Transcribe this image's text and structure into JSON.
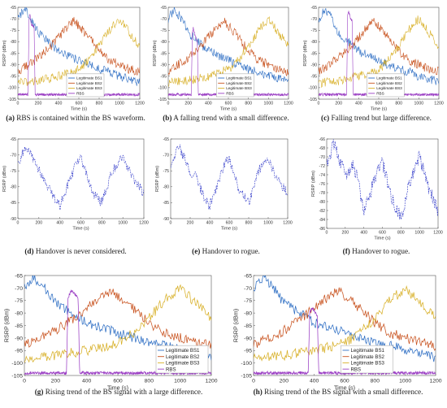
{
  "chart_data": [
    {
      "type": "line",
      "panel": "a",
      "caption_tag": "(a)",
      "caption": "RBS is contained within the BS waveform.",
      "xlabel": "Time (s)",
      "ylabel": "RSRP (dBm)",
      "xlim": [
        0,
        1200
      ],
      "ylim": [
        -105,
        -65
      ],
      "xticks": [
        "0",
        "200",
        "400",
        "600",
        "800",
        "1000",
        "1200"
      ],
      "yticks": [
        "-65",
        "-70",
        "-75",
        "-80",
        "-85",
        "-90",
        "-95",
        "-100",
        "-105"
      ],
      "legend": "bottom-left",
      "series": [
        {
          "name": "Legitimate BS1",
          "color": "#2f6fc4",
          "x": [
            0,
            60,
            120,
            200,
            300,
            400,
            500,
            600,
            700,
            800,
            900,
            1000,
            1100,
            1200
          ],
          "y": [
            -70,
            -66,
            -69,
            -76,
            -80,
            -84,
            -86,
            -88,
            -90,
            -92,
            -93,
            -95,
            -96,
            -98
          ]
        },
        {
          "name": "Legitimate BS2",
          "color": "#c8521e",
          "x": [
            0,
            100,
            200,
            300,
            400,
            500,
            550,
            600,
            700,
            800,
            900,
            1000,
            1100,
            1200
          ],
          "y": [
            -93,
            -90,
            -87,
            -83,
            -78,
            -73,
            -71,
            -73,
            -78,
            -84,
            -88,
            -90,
            -92,
            -93
          ]
        },
        {
          "name": "Legitimate BS3",
          "color": "#d8b028",
          "x": [
            0,
            200,
            400,
            600,
            700,
            800,
            900,
            1000,
            1100,
            1200
          ],
          "y": [
            -98,
            -97,
            -95,
            -92,
            -88,
            -82,
            -75,
            -70,
            -76,
            -82
          ]
        },
        {
          "name": "RBS",
          "color": "#9b3fc4",
          "x": [
            0,
            100,
            110,
            120,
            130,
            160,
            170,
            180,
            200,
            1200
          ],
          "y": [
            -103,
            -103,
            -70,
            -68,
            -72,
            -74,
            -103,
            -103,
            -103,
            -103
          ]
        }
      ]
    },
    {
      "type": "line",
      "panel": "b",
      "caption_tag": "(b)",
      "caption": "A falling trend with a small difference.",
      "xlabel": "Time (s)",
      "ylabel": "RSRP (dBm)",
      "xlim": [
        0,
        1200
      ],
      "ylim": [
        -105,
        -65
      ],
      "xticks": [
        "0",
        "200",
        "400",
        "600",
        "800",
        "1000",
        "1200"
      ],
      "yticks": [
        "-65",
        "-70",
        "-75",
        "-80",
        "-85",
        "-90",
        "-95",
        "-100",
        "-105"
      ],
      "legend": "bottom-left",
      "series": [
        {
          "name": "Legitimate BS1",
          "color": "#2f6fc4",
          "x": [
            0,
            60,
            120,
            200,
            300,
            400,
            500,
            600,
            700,
            800,
            900,
            1000,
            1100,
            1200
          ],
          "y": [
            -70,
            -66,
            -69,
            -76,
            -80,
            -84,
            -86,
            -88,
            -90,
            -92,
            -93,
            -95,
            -96,
            -98
          ]
        },
        {
          "name": "Legitimate BS2",
          "color": "#c8521e",
          "x": [
            0,
            100,
            200,
            300,
            400,
            500,
            550,
            600,
            700,
            800,
            900,
            1000,
            1100,
            1200
          ],
          "y": [
            -93,
            -90,
            -87,
            -83,
            -78,
            -73,
            -71,
            -73,
            -78,
            -84,
            -88,
            -90,
            -92,
            -93
          ]
        },
        {
          "name": "Legitimate BS3",
          "color": "#d8b028",
          "x": [
            0,
            200,
            400,
            600,
            700,
            800,
            900,
            1000,
            1100,
            1200
          ],
          "y": [
            -98,
            -97,
            -95,
            -92,
            -88,
            -82,
            -75,
            -70,
            -76,
            -82
          ]
        },
        {
          "name": "RBS",
          "color": "#9b3fc4",
          "x": [
            0,
            230,
            240,
            250,
            270,
            290,
            300,
            310,
            1200
          ],
          "y": [
            -103,
            -103,
            -76,
            -74,
            -78,
            -80,
            -103,
            -103,
            -103
          ]
        }
      ]
    },
    {
      "type": "line",
      "panel": "c",
      "caption_tag": "(c)",
      "caption": "Falling trend but large difference.",
      "xlabel": "Time (s)",
      "ylabel": "RSRP (dBm)",
      "xlim": [
        0,
        1200
      ],
      "ylim": [
        -105,
        -65
      ],
      "xticks": [
        "0",
        "200",
        "400",
        "600",
        "800",
        "1000",
        "1200"
      ],
      "yticks": [
        "-65",
        "-70",
        "-75",
        "-80",
        "-85",
        "-90",
        "-95",
        "-100",
        "-105"
      ],
      "legend": "bottom-left",
      "series": [
        {
          "name": "Legitimate BS1",
          "color": "#2f6fc4",
          "x": [
            0,
            60,
            120,
            200,
            300,
            400,
            500,
            600,
            700,
            800,
            900,
            1000,
            1100,
            1200
          ],
          "y": [
            -70,
            -66,
            -69,
            -76,
            -80,
            -84,
            -86,
            -88,
            -90,
            -92,
            -93,
            -95,
            -96,
            -98
          ]
        },
        {
          "name": "Legitimate BS2",
          "color": "#c8521e",
          "x": [
            0,
            100,
            200,
            300,
            400,
            500,
            550,
            600,
            700,
            800,
            900,
            1000,
            1100,
            1200
          ],
          "y": [
            -93,
            -90,
            -87,
            -83,
            -78,
            -73,
            -71,
            -73,
            -78,
            -84,
            -88,
            -90,
            -92,
            -93
          ]
        },
        {
          "name": "Legitimate BS3",
          "color": "#d8b028",
          "x": [
            0,
            200,
            400,
            600,
            700,
            800,
            900,
            1000,
            1100,
            1200
          ],
          "y": [
            -98,
            -97,
            -95,
            -92,
            -88,
            -82,
            -75,
            -70,
            -76,
            -82
          ]
        },
        {
          "name": "RBS",
          "color": "#9b3fc4",
          "x": [
            0,
            280,
            290,
            300,
            320,
            335,
            345,
            355,
            1200
          ],
          "y": [
            -103,
            -103,
            -68,
            -67,
            -70,
            -71,
            -103,
            -103,
            -103
          ]
        }
      ]
    },
    {
      "type": "line",
      "panel": "d",
      "caption_tag": "(d)",
      "caption": "Handover is never considered.",
      "xlabel": "Time (s)",
      "ylabel": "RSRP (dBm)",
      "xlim": [
        0,
        1200
      ],
      "ylim": [
        -90,
        -65
      ],
      "xticks": [
        "0",
        "200",
        "400",
        "600",
        "800",
        "1000",
        "1200"
      ],
      "yticks": [
        "-65",
        "-70",
        "-75",
        "-80",
        "-85",
        "-90"
      ],
      "series": [
        {
          "color": "#2f38c8",
          "x": [
            0,
            80,
            200,
            350,
            400,
            550,
            600,
            700,
            800,
            900,
            1000,
            1100,
            1200
          ],
          "y": [
            -73,
            -67,
            -75,
            -84,
            -86,
            -73,
            -71,
            -81,
            -85,
            -75,
            -71,
            -78,
            -82
          ]
        }
      ]
    },
    {
      "type": "line",
      "panel": "e",
      "caption_tag": "(e)",
      "caption": "Handover to rogue.",
      "xlabel": "Time (s)",
      "ylabel": "RSRP (dBm)",
      "xlim": [
        0,
        1200
      ],
      "ylim": [
        -90,
        -65
      ],
      "xticks": [
        "0",
        "200",
        "400",
        "600",
        "800",
        "1000",
        "1200"
      ],
      "yticks": [
        "-65",
        "-70",
        "-75",
        "-80",
        "-85",
        "-90"
      ],
      "series": [
        {
          "color": "#2f38c8",
          "x": [
            0,
            80,
            200,
            230,
            250,
            300,
            350,
            400,
            550,
            600,
            700,
            800,
            900,
            1000,
            1100,
            1200
          ],
          "y": [
            -73,
            -67,
            -75,
            -77,
            -75,
            -80,
            -84,
            -86,
            -73,
            -71,
            -81,
            -85,
            -75,
            -71,
            -78,
            -82
          ]
        }
      ]
    },
    {
      "type": "line",
      "panel": "f",
      "caption_tag": "(f)",
      "caption": "Handover to rogue.",
      "xlabel": "Time (s)",
      "ylabel": "RSRP (dBm)",
      "xlim": [
        0,
        1200
      ],
      "ylim": [
        -86,
        -66
      ],
      "xticks": [
        "0",
        "200",
        "400",
        "600",
        "800",
        "1000",
        "1200"
      ],
      "yticks": [
        "-66",
        "-68",
        "-70",
        "-72",
        "-74",
        "-76",
        "-78",
        "-80",
        "-82",
        "-84",
        "-86"
      ],
      "series": [
        {
          "color": "#2f38c8",
          "x": [
            0,
            80,
            200,
            280,
            320,
            400,
            550,
            600,
            700,
            800,
            900,
            1000,
            1100,
            1200
          ],
          "y": [
            -72,
            -67,
            -74,
            -72,
            -74,
            -82,
            -73,
            -71,
            -79,
            -84,
            -75,
            -70,
            -77,
            -82
          ]
        }
      ]
    },
    {
      "type": "line",
      "panel": "g",
      "caption_tag": "(g)",
      "caption": "Rising trend of the BS signal with a large difference.",
      "xlabel": "Time (s)",
      "ylabel": "RSRP (dBm)",
      "xlim": [
        0,
        1200
      ],
      "ylim": [
        -105,
        -65
      ],
      "xticks": [
        "0",
        "200",
        "400",
        "600",
        "800",
        "1000",
        "1200"
      ],
      "yticks": [
        "-65",
        "-70",
        "-75",
        "-80",
        "-85",
        "-90",
        "-95",
        "-100",
        "-105"
      ],
      "legend": "bottom-right",
      "series": [
        {
          "name": "Legitimate BS1",
          "color": "#2f6fc4",
          "x": [
            0,
            60,
            120,
            200,
            300,
            400,
            500,
            600,
            700,
            800,
            900,
            1000,
            1100,
            1200
          ],
          "y": [
            -70,
            -66,
            -69,
            -76,
            -80,
            -84,
            -86,
            -88,
            -90,
            -92,
            -93,
            -95,
            -96,
            -98
          ]
        },
        {
          "name": "Legitimate BS2",
          "color": "#c8521e",
          "x": [
            0,
            100,
            200,
            300,
            400,
            500,
            550,
            600,
            700,
            800,
            900,
            1000,
            1100,
            1200
          ],
          "y": [
            -93,
            -90,
            -87,
            -83,
            -78,
            -73,
            -71,
            -73,
            -78,
            -84,
            -88,
            -90,
            -92,
            -93
          ]
        },
        {
          "name": "Legitimate BS3",
          "color": "#d8b028",
          "x": [
            0,
            200,
            400,
            600,
            700,
            800,
            900,
            1000,
            1100,
            1200
          ],
          "y": [
            -98,
            -97,
            -95,
            -92,
            -88,
            -82,
            -75,
            -70,
            -76,
            -82
          ]
        },
        {
          "name": "RBS",
          "color": "#9b3fc4",
          "x": [
            0,
            270,
            280,
            300,
            320,
            345,
            355,
            365,
            1200
          ],
          "y": [
            -104,
            -104,
            -74,
            -71,
            -72,
            -74,
            -104,
            -104,
            -104
          ]
        }
      ]
    },
    {
      "type": "line",
      "panel": "h",
      "caption_tag": "(h)",
      "caption": "Rising trend of the BS signal with a small difference.",
      "xlabel": "Time (s)",
      "ylabel": "RSRP (dBm)",
      "xlim": [
        0,
        1200
      ],
      "ylim": [
        -105,
        -65
      ],
      "xticks": [
        "0",
        "200",
        "400",
        "600",
        "800",
        "1000",
        "1200"
      ],
      "yticks": [
        "-65",
        "-70",
        "-75",
        "-80",
        "-85",
        "-90",
        "-95",
        "-100",
        "-105"
      ],
      "legend": "bottom-center",
      "series": [
        {
          "name": "Legitimate BS1",
          "color": "#2f6fc4",
          "x": [
            0,
            60,
            120,
            200,
            300,
            400,
            500,
            600,
            700,
            800,
            900,
            1000,
            1100,
            1200
          ],
          "y": [
            -70,
            -66,
            -69,
            -76,
            -80,
            -84,
            -86,
            -88,
            -90,
            -92,
            -93,
            -95,
            -96,
            -98
          ]
        },
        {
          "name": "Legitimate BS2",
          "color": "#c8521e",
          "x": [
            0,
            100,
            200,
            300,
            400,
            500,
            550,
            600,
            700,
            800,
            900,
            1000,
            1100,
            1200
          ],
          "y": [
            -93,
            -90,
            -87,
            -83,
            -78,
            -73,
            -71,
            -73,
            -78,
            -84,
            -88,
            -90,
            -92,
            -93
          ]
        },
        {
          "name": "Legitimate BS3",
          "color": "#d8b028",
          "x": [
            0,
            200,
            400,
            600,
            700,
            800,
            900,
            1000,
            1100,
            1200
          ],
          "y": [
            -98,
            -97,
            -95,
            -92,
            -88,
            -82,
            -75,
            -70,
            -76,
            -82
          ]
        },
        {
          "name": "RBS",
          "color": "#9b3fc4",
          "x": [
            0,
            360,
            370,
            385,
            400,
            420,
            430,
            440,
            1200
          ],
          "y": [
            -104,
            -104,
            -80,
            -78,
            -79,
            -81,
            -104,
            -104,
            -104
          ]
        }
      ]
    }
  ]
}
